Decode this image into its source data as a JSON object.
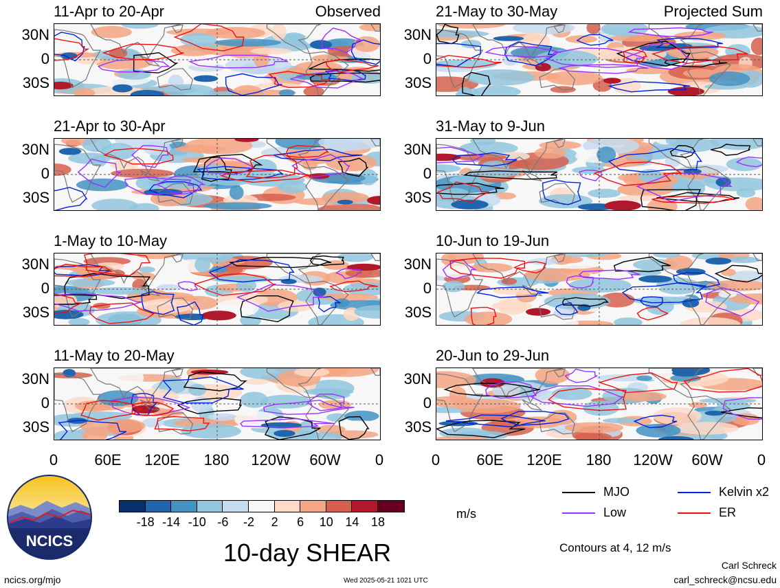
{
  "panels": [
    {
      "title": "11-Apr to 20-Apr",
      "corner": "Observed",
      "seed": 1
    },
    {
      "title": "21-Apr to 30-Apr",
      "corner": "",
      "seed": 2
    },
    {
      "title": "1-May to 10-May",
      "corner": "",
      "seed": 3
    },
    {
      "title": "11-May to 20-May",
      "corner": "",
      "seed": 4
    },
    {
      "title": "21-May to 30-May",
      "corner": "Projected Sum",
      "seed": 5
    },
    {
      "title": "31-May to 9-Jun",
      "corner": "",
      "seed": 6
    },
    {
      "title": "10-Jun to 19-Jun",
      "corner": "",
      "seed": 7
    },
    {
      "title": "20-Jun to 29-Jun",
      "corner": "",
      "seed": 8
    }
  ],
  "axes": {
    "y_ticks": [
      "30N",
      "0",
      "30S"
    ],
    "x_ticks": [
      "0",
      "60E",
      "120E",
      "180",
      "120W",
      "60W",
      "0"
    ]
  },
  "colorbar": {
    "colors": [
      "#08306b",
      "#2166ac",
      "#4393c3",
      "#92c5de",
      "#c6dbef",
      "#f7f7f7",
      "#fddbc7",
      "#f4a582",
      "#d6604d",
      "#b2182b",
      "#67001f"
    ],
    "ticks": [
      "-18",
      "-14",
      "-10",
      "-6",
      "-2",
      "2",
      "6",
      "10",
      "14",
      "18"
    ],
    "units": "m/s"
  },
  "legend": [
    {
      "label": "MJO",
      "color": "#000000"
    },
    {
      "label": "Kelvin x2",
      "color": "#0022dd"
    },
    {
      "label": "Low",
      "color": "#9b30ff"
    },
    {
      "label": "ER",
      "color": "#ee1111"
    }
  ],
  "contour_note": "Contours at 4, 12 m/s",
  "title": "10-day SHEAR",
  "logo_text": "NCICS",
  "website": "ncics.org/mjo",
  "timestamp": "Wed 2025-05-21 1021 UTC",
  "author": "Carl Schreck",
  "email": "carl_schreck@ncsu.edu",
  "chart_data": {
    "type": "heatmap",
    "variable": "10-day SHEAR",
    "units": "m/s",
    "lat_ticks": [
      "30N",
      "0",
      "30S"
    ],
    "lon_ticks": [
      "0",
      "60E",
      "120E",
      "180",
      "120W",
      "60W",
      "0"
    ],
    "color_levels": [
      -18,
      -14,
      -10,
      -6,
      -2,
      2,
      6,
      10,
      14,
      18
    ],
    "contour_levels": [
      4,
      12
    ],
    "contour_series": [
      "MJO",
      "Kelvin x2",
      "Low",
      "ER"
    ]
  }
}
